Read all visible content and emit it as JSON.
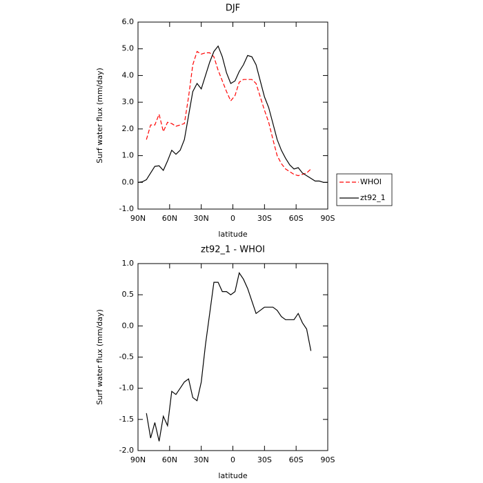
{
  "chart_data": [
    {
      "type": "line",
      "title": "DJF",
      "xlabel": "latitude",
      "ylabel": "Surf water flux (mm/day)",
      "x": [
        90,
        86,
        82,
        78,
        74,
        70,
        66,
        62,
        58,
        54,
        50,
        46,
        42,
        38,
        34,
        30,
        26,
        22,
        18,
        14,
        10,
        6,
        2,
        -2,
        -6,
        -10,
        -14,
        -18,
        -22,
        -26,
        -30,
        -34,
        -38,
        -42,
        -46,
        -50,
        -54,
        -58,
        -62,
        -66,
        -70,
        -74,
        -78,
        -82,
        -86,
        -90
      ],
      "series": [
        {
          "name": "WHOI",
          "color": "#ff0000",
          "linestyle": "dashed",
          "values": [
            null,
            null,
            1.6,
            2.15,
            2.15,
            2.55,
            1.9,
            2.25,
            2.2,
            2.1,
            2.15,
            2.2,
            3.2,
            4.4,
            4.9,
            4.8,
            4.85,
            4.85,
            4.7,
            4.2,
            3.8,
            3.4,
            3.05,
            3.25,
            3.75,
            3.85,
            3.85,
            3.85,
            3.7,
            3.2,
            2.7,
            2.25,
            1.6,
            1.0,
            0.7,
            0.5,
            0.4,
            0.3,
            0.25,
            0.3,
            0.35,
            0.5,
            null,
            null,
            null,
            null
          ]
        },
        {
          "name": "zt92_1",
          "color": "#000000",
          "linestyle": "solid",
          "values": [
            0.0,
            0.02,
            0.1,
            0.35,
            0.6,
            0.62,
            0.45,
            0.8,
            1.2,
            1.05,
            1.2,
            1.6,
            2.5,
            3.4,
            3.7,
            3.5,
            4.0,
            4.5,
            4.9,
            5.1,
            4.7,
            4.1,
            3.7,
            3.8,
            4.15,
            4.4,
            4.75,
            4.7,
            4.4,
            3.8,
            3.2,
            2.8,
            2.2,
            1.6,
            1.2,
            0.9,
            0.65,
            0.5,
            0.55,
            0.35,
            0.25,
            0.15,
            0.05,
            0.05,
            0.0,
            0.0
          ]
        }
      ],
      "xlim": [
        90,
        -90
      ],
      "xticks": [
        {
          "value": 90,
          "label": "90N"
        },
        {
          "value": 60,
          "label": "60N"
        },
        {
          "value": 30,
          "label": "30N"
        },
        0,
        {
          "value": -30,
          "label": "30S"
        },
        {
          "value": -60,
          "label": "60S"
        },
        {
          "value": -90,
          "label": "90S"
        }
      ],
      "ylim": [
        -1,
        6
      ],
      "yticks": [
        {
          "value": -1,
          "label": "-1.0"
        },
        {
          "value": 0,
          "label": "0.0"
        },
        {
          "value": 1,
          "label": "1.0"
        },
        {
          "value": 2,
          "label": "2.0"
        },
        {
          "value": 3,
          "label": "3.0"
        },
        {
          "value": 4,
          "label": "4.0"
        },
        {
          "value": 5,
          "label": "5.0"
        },
        {
          "value": 6,
          "label": "6.0"
        }
      ],
      "grid": false,
      "legend": "right"
    },
    {
      "type": "line",
      "title": "zt92_1 - WHOI",
      "xlabel": "latitude",
      "ylabel": "Surf water flux (mm/day)",
      "x": [
        82,
        78,
        74,
        70,
        66,
        62,
        58,
        54,
        50,
        46,
        42,
        38,
        34,
        30,
        26,
        22,
        18,
        14,
        10,
        6,
        2,
        -2,
        -6,
        -10,
        -14,
        -18,
        -22,
        -26,
        -30,
        -34,
        -38,
        -42,
        -46,
        -50,
        -54,
        -58,
        -62,
        -66,
        -70,
        -74
      ],
      "values": [
        -1.4,
        -1.8,
        -1.55,
        -1.85,
        -1.45,
        -1.6,
        -1.05,
        -1.1,
        -1.0,
        -0.9,
        -0.85,
        -1.15,
        -1.2,
        -0.9,
        -0.3,
        0.2,
        0.7,
        0.7,
        0.55,
        0.55,
        0.5,
        0.55,
        0.85,
        0.75,
        0.6,
        0.4,
        0.2,
        0.25,
        0.3,
        0.3,
        0.3,
        0.25,
        0.15,
        0.1,
        0.1,
        0.1,
        0.2,
        0.05,
        -0.05,
        -0.4
      ],
      "color": "#000000",
      "xlim": [
        90,
        -90
      ],
      "xticks": [
        {
          "value": 90,
          "label": "90N"
        },
        {
          "value": 60,
          "label": "60N"
        },
        {
          "value": 30,
          "label": "30N"
        },
        0,
        {
          "value": -30,
          "label": "30S"
        },
        {
          "value": -60,
          "label": "60S"
        },
        {
          "value": -90,
          "label": "90S"
        }
      ],
      "ylim": [
        -2,
        1
      ],
      "yticks": [
        {
          "value": -2,
          "label": "-2.0"
        },
        {
          "value": -1.5,
          "label": "-1.5"
        },
        {
          "value": -1,
          "label": "-1.0"
        },
        {
          "value": -0.5,
          "label": "-0.5"
        },
        {
          "value": 0,
          "label": "0.0"
        },
        {
          "value": 0.5,
          "label": "0.5"
        },
        {
          "value": 1,
          "label": "1.0"
        }
      ],
      "grid": false
    }
  ]
}
